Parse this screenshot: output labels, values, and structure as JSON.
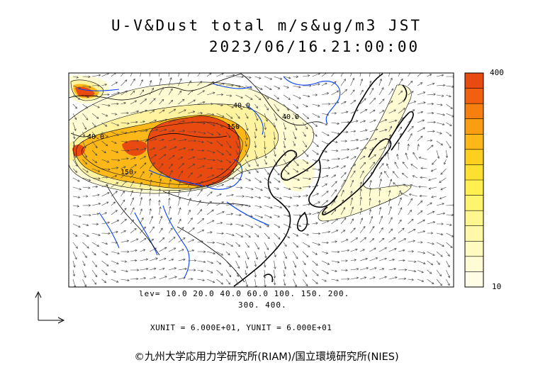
{
  "title": {
    "line1": "U-V&Dust total m/s&ug/m3 JST",
    "line2": "2023/06/16.21:00:00"
  },
  "levels": {
    "line1": "lev= 10.0 20.0 40.0 60.0 100. 150. 200.",
    "line2": "300. 400."
  },
  "units_text": "XUNIT = 6.000E+01, YUNIT = 6.000E+01",
  "credit": "©九州大学応用力学研究所(RIAM)/国立環境研究所(NIES)",
  "colorbar": {
    "top_label": "400",
    "bottom_label": "10",
    "colors": [
      "#e84a10",
      "#f06010",
      "#f58010",
      "#f89e10",
      "#fbb818",
      "#fdd020",
      "#fee030",
      "#fff050",
      "#fff470",
      "#fff690",
      "#fff8a8",
      "#fffac0",
      "#fffbd4",
      "#fffde6"
    ]
  },
  "contour_labels": [
    "40.0",
    "40.0",
    "150",
    "150",
    "40.0"
  ],
  "colors": {
    "coast": "#000000",
    "river": "#0040ff",
    "dust_high": "#e84a10",
    "dust_mid": "#fbb818",
    "dust_low": "#fff3a0",
    "dust_faint": "#fffbd2",
    "vector": "#444444"
  }
}
